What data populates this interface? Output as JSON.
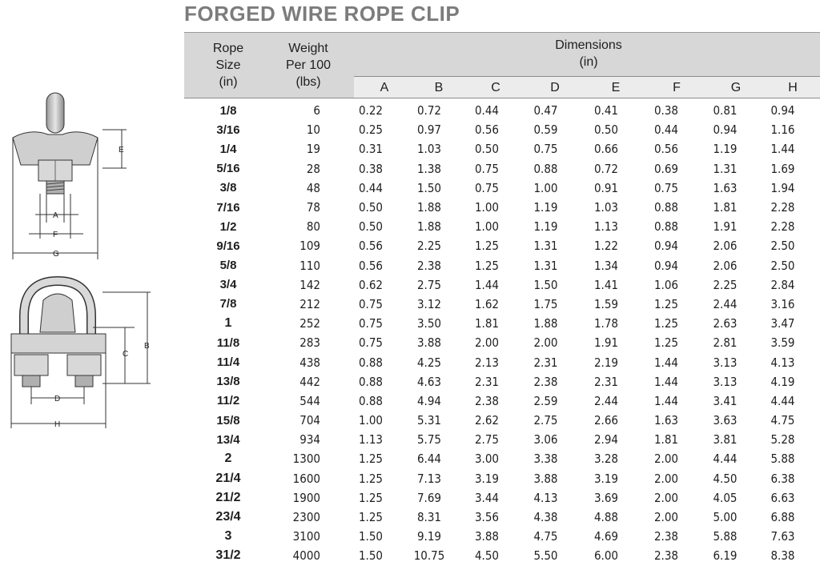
{
  "title": "FORGED WIRE ROPE CLIP",
  "headers": {
    "rope_size": "Rope\nSize\n(in)",
    "weight": "Weight\nPer 100\n(lbs)",
    "dimensions": "Dimensions\n(in)",
    "columns": [
      "A",
      "B",
      "C",
      "D",
      "E",
      "F",
      "G",
      "H"
    ]
  },
  "diagram_labels": {
    "top": [
      "E",
      "A",
      "F",
      "G"
    ],
    "bottom": [
      "B",
      "C",
      "D",
      "H"
    ]
  },
  "rows": [
    {
      "size": "1/8",
      "weight": "6",
      "dims": [
        "0.22",
        "0.72",
        "0.44",
        "0.47",
        "0.41",
        "0.38",
        "0.81",
        "0.94"
      ]
    },
    {
      "size": "3/16",
      "weight": "10",
      "dims": [
        "0.25",
        "0.97",
        "0.56",
        "0.59",
        "0.50",
        "0.44",
        "0.94",
        "1.16"
      ]
    },
    {
      "size": "1/4",
      "weight": "19",
      "dims": [
        "0.31",
        "1.03",
        "0.50",
        "0.75",
        "0.66",
        "0.56",
        "1.19",
        "1.44"
      ]
    },
    {
      "size": "5/16",
      "weight": "28",
      "dims": [
        "0.38",
        "1.38",
        "0.75",
        "0.88",
        "0.72",
        "0.69",
        "1.31",
        "1.69"
      ]
    },
    {
      "size": "3/8",
      "weight": "48",
      "dims": [
        "0.44",
        "1.50",
        "0.75",
        "1.00",
        "0.91",
        "0.75",
        "1.63",
        "1.94"
      ]
    },
    {
      "size": "7/16",
      "weight": "78",
      "dims": [
        "0.50",
        "1.88",
        "1.00",
        "1.19",
        "1.03",
        "0.88",
        "1.81",
        "2.28"
      ]
    },
    {
      "size": "1/2",
      "weight": "80",
      "dims": [
        "0.50",
        "1.88",
        "1.00",
        "1.19",
        "1.13",
        "0.88",
        "1.91",
        "2.28"
      ]
    },
    {
      "size": "9/16",
      "weight": "109",
      "dims": [
        "0.56",
        "2.25",
        "1.25",
        "1.31",
        "1.22",
        "0.94",
        "2.06",
        "2.50"
      ]
    },
    {
      "size": "5/8",
      "weight": "110",
      "dims": [
        "0.56",
        "2.38",
        "1.25",
        "1.31",
        "1.34",
        "0.94",
        "2.06",
        "2.50"
      ]
    },
    {
      "size": "3/4",
      "weight": "142",
      "dims": [
        "0.62",
        "2.75",
        "1.44",
        "1.50",
        "1.41",
        "1.06",
        "2.25",
        "2.84"
      ]
    },
    {
      "size": "7/8",
      "weight": "212",
      "dims": [
        "0.75",
        "3.12",
        "1.62",
        "1.75",
        "1.59",
        "1.25",
        "2.44",
        "3.16"
      ]
    },
    {
      "size": "1",
      "weight": "252",
      "dims": [
        "0.75",
        "3.50",
        "1.81",
        "1.88",
        "1.78",
        "1.25",
        "2.63",
        "3.47"
      ]
    },
    {
      "size": "11/8",
      "weight": "283",
      "dims": [
        "0.75",
        "3.88",
        "2.00",
        "2.00",
        "1.91",
        "1.25",
        "2.81",
        "3.59"
      ]
    },
    {
      "size": "11/4",
      "weight": "438",
      "dims": [
        "0.88",
        "4.25",
        "2.13",
        "2.31",
        "2.19",
        "1.44",
        "3.13",
        "4.13"
      ]
    },
    {
      "size": "13/8",
      "weight": "442",
      "dims": [
        "0.88",
        "4.63",
        "2.31",
        "2.38",
        "2.31",
        "1.44",
        "3.13",
        "4.19"
      ]
    },
    {
      "size": "11/2",
      "weight": "544",
      "dims": [
        "0.88",
        "4.94",
        "2.38",
        "2.59",
        "2.44",
        "1.44",
        "3.41",
        "4.44"
      ]
    },
    {
      "size": "15/8",
      "weight": "704",
      "dims": [
        "1.00",
        "5.31",
        "2.62",
        "2.75",
        "2.66",
        "1.63",
        "3.63",
        "4.75"
      ]
    },
    {
      "size": "13/4",
      "weight": "934",
      "dims": [
        "1.13",
        "5.75",
        "2.75",
        "3.06",
        "2.94",
        "1.81",
        "3.81",
        "5.28"
      ]
    },
    {
      "size": "2",
      "weight": "1300",
      "dims": [
        "1.25",
        "6.44",
        "3.00",
        "3.38",
        "3.28",
        "2.00",
        "4.44",
        "5.88"
      ]
    },
    {
      "size": "21/4",
      "weight": "1600",
      "dims": [
        "1.25",
        "7.13",
        "3.19",
        "3.88",
        "3.19",
        "2.00",
        "4.50",
        "6.38"
      ]
    },
    {
      "size": "21/2",
      "weight": "1900",
      "dims": [
        "1.25",
        "7.69",
        "3.44",
        "4.13",
        "3.69",
        "2.00",
        "4.05",
        "6.63"
      ]
    },
    {
      "size": "23/4",
      "weight": "2300",
      "dims": [
        "1.25",
        "8.31",
        "3.56",
        "4.38",
        "4.88",
        "2.00",
        "5.00",
        "6.88"
      ]
    },
    {
      "size": "3",
      "weight": "3100",
      "dims": [
        "1.50",
        "9.19",
        "3.88",
        "4.75",
        "4.69",
        "2.38",
        "5.88",
        "7.63"
      ]
    },
    {
      "size": "31/2",
      "weight": "4000",
      "dims": [
        "1.50",
        "10.75",
        "4.50",
        "5.50",
        "6.00",
        "2.38",
        "6.19",
        "8.38"
      ]
    }
  ]
}
